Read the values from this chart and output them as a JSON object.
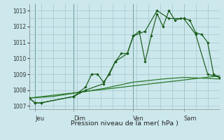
{
  "bg_color": "#cce8ec",
  "grid_color": "#aaccd4",
  "line_color1": "#1a5c1a",
  "line_color2": "#2d7a2d",
  "ylim": [
    1006.8,
    1013.4
  ],
  "xlim": [
    0,
    64
  ],
  "yticks": [
    1007,
    1008,
    1009,
    1010,
    1011,
    1012,
    1013
  ],
  "xlabel": "Pression niveau de la mer( hPa )",
  "x_day_labels": [
    [
      "Jeu",
      2
    ],
    [
      "Dim",
      15
    ],
    [
      "Ven",
      35
    ],
    [
      "Sam",
      52
    ]
  ],
  "vlines": [
    2,
    15,
    35,
    52
  ],
  "series_smooth1": {
    "x": [
      0,
      64
    ],
    "y": [
      1007.5,
      1008.9
    ]
  },
  "series_smooth2": {
    "x": [
      0,
      8,
      15,
      25,
      35,
      45,
      52,
      58,
      64
    ],
    "y": [
      1007.5,
      1007.6,
      1007.8,
      1008.1,
      1008.5,
      1008.7,
      1008.8,
      1008.75,
      1008.7
    ]
  },
  "series_jagged1": {
    "x": [
      0,
      2,
      4,
      15,
      17,
      19,
      21,
      23,
      25,
      27,
      29,
      31,
      33,
      35,
      37,
      39,
      41,
      43,
      45,
      47,
      49,
      51,
      52,
      54,
      56,
      58,
      60,
      62,
      64
    ],
    "y": [
      1007.5,
      1007.2,
      1007.2,
      1007.6,
      1007.9,
      1008.2,
      1009.0,
      1009.0,
      1008.5,
      1009.0,
      1009.8,
      1010.3,
      1010.3,
      1011.4,
      1011.7,
      1009.8,
      1011.4,
      1012.8,
      1012.0,
      1013.0,
      1012.4,
      1012.5,
      1012.5,
      1012.4,
      1011.6,
      1011.5,
      1011.0,
      1009.0,
      1008.8
    ]
  },
  "series_jagged2": {
    "x": [
      0,
      2,
      4,
      15,
      19,
      25,
      29,
      33,
      35,
      39,
      43,
      47,
      52,
      56,
      60,
      64
    ],
    "y": [
      1007.5,
      1007.2,
      1007.2,
      1007.6,
      1008.0,
      1008.4,
      1009.8,
      1010.3,
      1011.4,
      1011.7,
      1013.0,
      1012.5,
      1012.5,
      1011.5,
      1009.0,
      1008.8
    ]
  }
}
